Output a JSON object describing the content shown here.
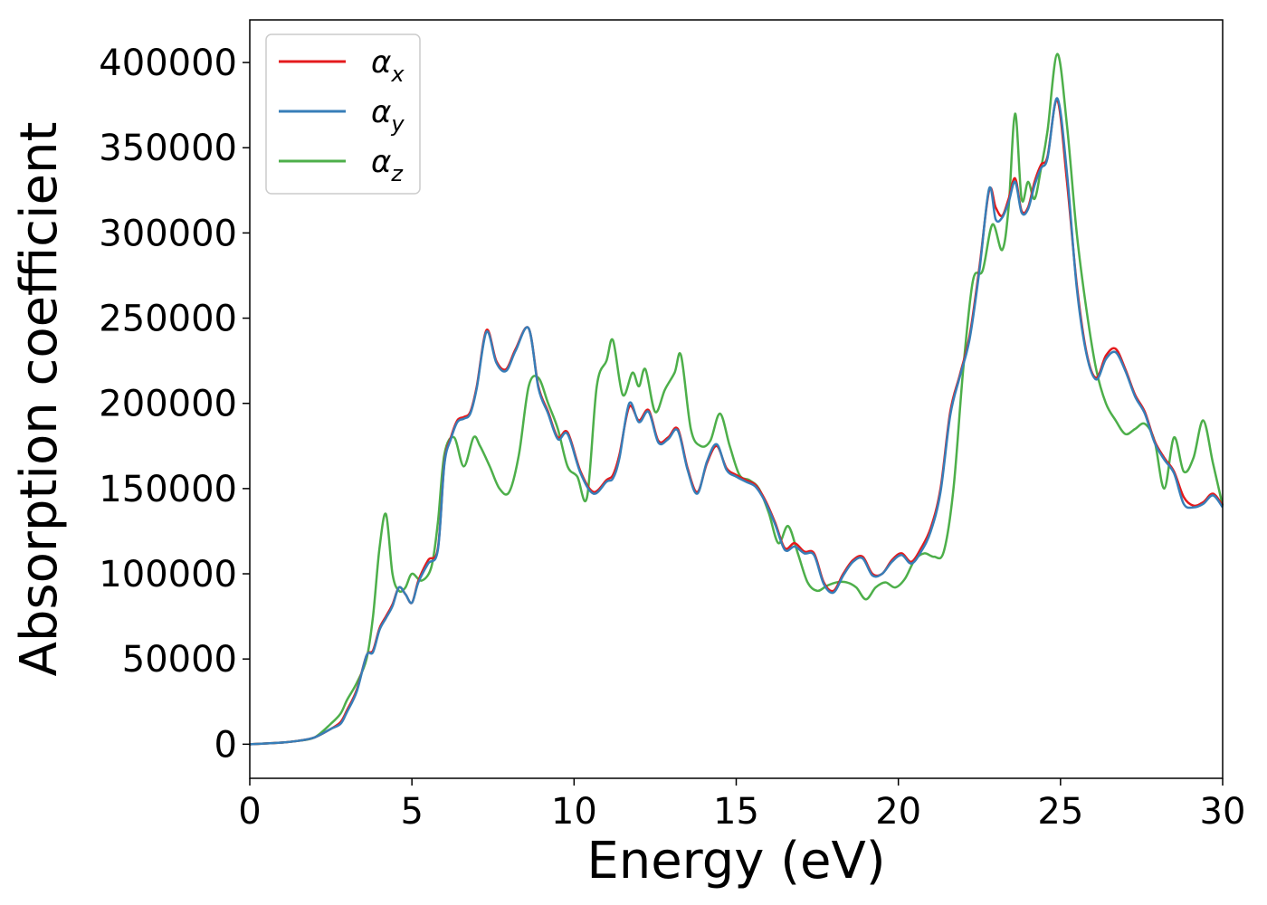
{
  "chart_data": {
    "type": "line",
    "title": "",
    "xlabel": "Energy (eV)",
    "ylabel": "Absorption coefficient",
    "xlim": [
      0,
      30
    ],
    "ylim": [
      -20000,
      425000
    ],
    "xticks": [
      0,
      5,
      10,
      15,
      20,
      25,
      30
    ],
    "yticks": [
      0,
      50000,
      100000,
      150000,
      200000,
      250000,
      300000,
      350000,
      400000
    ],
    "grid": false,
    "legend_position": "top-left",
    "series": [
      {
        "name": "α_x",
        "label_base": "α",
        "label_sub": "x",
        "color": "#e41a1c",
        "x": [
          0,
          1,
          1.5,
          2,
          2.5,
          2.8,
          3,
          3.3,
          3.6,
          3.8,
          4,
          4.2,
          4.4,
          4.6,
          4.8,
          5,
          5.2,
          5.5,
          5.8,
          6,
          6.2,
          6.4,
          6.6,
          6.8,
          7,
          7.3,
          7.6,
          7.9,
          8.2,
          8.6,
          8.9,
          9.2,
          9.5,
          9.8,
          10.2,
          10.6,
          11,
          11.2,
          11.4,
          11.7,
          12,
          12.3,
          12.6,
          12.9,
          13.2,
          13.5,
          13.8,
          14.1,
          14.4,
          14.7,
          15,
          15.3,
          15.6,
          15.9,
          16.2,
          16.5,
          16.8,
          17.1,
          17.4,
          17.7,
          18,
          18.3,
          18.6,
          18.9,
          19.2,
          19.5,
          19.8,
          20.1,
          20.4,
          20.7,
          21,
          21.3,
          21.6,
          21.9,
          22.2,
          22.5,
          22.8,
          23,
          23.2,
          23.4,
          23.6,
          23.8,
          24,
          24.2,
          24.4,
          24.6,
          24.9,
          25.2,
          25.5,
          25.8,
          26.1,
          26.4,
          26.7,
          27,
          27.3,
          27.6,
          27.9,
          28.2,
          28.5,
          28.8,
          29.1,
          29.4,
          29.7,
          30
        ],
        "y": [
          0,
          1000,
          2000,
          4000,
          9000,
          13000,
          20000,
          32000,
          52000,
          55000,
          68000,
          75000,
          82000,
          92000,
          88000,
          83000,
          96000,
          108000,
          115000,
          165000,
          180000,
          190000,
          192000,
          195000,
          210000,
          243000,
          225000,
          220000,
          232000,
          244000,
          210000,
          195000,
          180000,
          183000,
          160000,
          148000,
          155000,
          158000,
          170000,
          198000,
          190000,
          196000,
          178000,
          180000,
          185000,
          162000,
          148000,
          165000,
          175000,
          162000,
          158000,
          155000,
          152000,
          143000,
          130000,
          115000,
          118000,
          113000,
          112000,
          95000,
          90000,
          100000,
          108000,
          110000,
          100000,
          100000,
          108000,
          112000,
          107000,
          115000,
          127000,
          150000,
          195000,
          217000,
          240000,
          280000,
          325000,
          315000,
          310000,
          320000,
          332000,
          313000,
          315000,
          330000,
          340000,
          345000,
          378000,
          330000,
          270000,
          230000,
          215000,
          228000,
          232000,
          220000,
          205000,
          195000,
          178000,
          168000,
          160000,
          145000,
          140000,
          142000,
          147000,
          140000
        ]
      },
      {
        "name": "α_y",
        "label_base": "α",
        "label_sub": "y",
        "color": "#377eb8",
        "x": [
          0,
          1,
          1.5,
          2,
          2.5,
          2.8,
          3,
          3.3,
          3.6,
          3.8,
          4,
          4.2,
          4.4,
          4.6,
          4.8,
          5,
          5.2,
          5.5,
          5.8,
          6,
          6.2,
          6.4,
          6.6,
          6.8,
          7,
          7.3,
          7.6,
          7.9,
          8.2,
          8.6,
          8.9,
          9.2,
          9.5,
          9.8,
          10.2,
          10.6,
          11,
          11.2,
          11.4,
          11.7,
          12,
          12.3,
          12.6,
          12.9,
          13.2,
          13.5,
          13.8,
          14.1,
          14.4,
          14.7,
          15,
          15.3,
          15.6,
          15.9,
          16.2,
          16.5,
          16.8,
          17.1,
          17.4,
          17.7,
          18,
          18.3,
          18.6,
          18.9,
          19.2,
          19.5,
          19.8,
          20.1,
          20.4,
          20.7,
          21,
          21.3,
          21.6,
          21.9,
          22.2,
          22.5,
          22.8,
          23,
          23.2,
          23.4,
          23.6,
          23.8,
          24,
          24.2,
          24.4,
          24.6,
          24.9,
          25.2,
          25.5,
          25.8,
          26.1,
          26.4,
          26.7,
          27,
          27.3,
          27.6,
          27.9,
          28.2,
          28.5,
          28.8,
          29.1,
          29.4,
          29.7,
          30
        ],
        "y": [
          0,
          1000,
          2000,
          4000,
          9000,
          12000,
          19000,
          31000,
          52000,
          54000,
          67000,
          74000,
          81000,
          92000,
          88000,
          83000,
          95000,
          106000,
          114000,
          164000,
          179000,
          189000,
          191000,
          194000,
          209000,
          242000,
          224000,
          219000,
          231000,
          244000,
          209000,
          194000,
          179000,
          182000,
          159000,
          147000,
          154000,
          156000,
          168000,
          200000,
          189000,
          195000,
          177000,
          179000,
          184000,
          161000,
          147000,
          166000,
          176000,
          161000,
          157000,
          154000,
          151000,
          142000,
          129000,
          114000,
          116000,
          112000,
          111000,
          94000,
          89000,
          99000,
          107000,
          109000,
          99000,
          100000,
          107000,
          111000,
          106000,
          113000,
          125000,
          148000,
          193000,
          216000,
          238000,
          278000,
          326000,
          308000,
          309000,
          318000,
          330000,
          312000,
          314000,
          328000,
          338000,
          344000,
          379000,
          335000,
          268000,
          229000,
          214000,
          226000,
          230000,
          219000,
          204000,
          194000,
          177000,
          167000,
          159000,
          141000,
          139000,
          141000,
          146000,
          139000
        ]
      },
      {
        "name": "α_z",
        "label_base": "α",
        "label_sub": "z",
        "color": "#4daf4a",
        "x": [
          0,
          1,
          1.5,
          2,
          2.5,
          2.8,
          3,
          3.3,
          3.6,
          3.8,
          4,
          4.2,
          4.4,
          4.6,
          4.8,
          5,
          5.3,
          5.6,
          5.8,
          6,
          6.3,
          6.6,
          6.9,
          7.1,
          7.4,
          7.7,
          8,
          8.3,
          8.6,
          8.9,
          9.2,
          9.5,
          9.8,
          10.1,
          10.4,
          10.7,
          11,
          11.2,
          11.5,
          11.8,
          12,
          12.2,
          12.5,
          12.8,
          13.1,
          13.3,
          13.6,
          13.9,
          14.2,
          14.5,
          14.8,
          15.1,
          15.4,
          15.7,
          16,
          16.3,
          16.6,
          16.9,
          17.2,
          17.5,
          17.8,
          18.1,
          18.4,
          18.7,
          19,
          19.3,
          19.6,
          19.9,
          20.2,
          20.5,
          20.8,
          21.1,
          21.4,
          21.7,
          22,
          22.3,
          22.6,
          22.9,
          23.2,
          23.4,
          23.6,
          23.8,
          24,
          24.2,
          24.4,
          24.6,
          24.9,
          25.2,
          25.5,
          25.8,
          26.1,
          26.4,
          26.7,
          27,
          27.3,
          27.6,
          27.9,
          28.2,
          28.5,
          28.8,
          29.1,
          29.4,
          29.7,
          30
        ],
        "y": [
          0,
          1000,
          2000,
          4000,
          12000,
          18000,
          26000,
          36000,
          50000,
          75000,
          115000,
          135000,
          100000,
          90000,
          92000,
          100000,
          96000,
          104000,
          130000,
          170000,
          180000,
          163000,
          180000,
          175000,
          163000,
          150000,
          148000,
          170000,
          210000,
          215000,
          200000,
          185000,
          163000,
          157000,
          145000,
          210000,
          225000,
          237000,
          205000,
          218000,
          210000,
          220000,
          195000,
          208000,
          218000,
          228000,
          185000,
          175000,
          178000,
          194000,
          175000,
          158000,
          155000,
          150000,
          136000,
          118000,
          128000,
          112000,
          95000,
          90000,
          93000,
          95000,
          95000,
          92000,
          85000,
          92000,
          95000,
          92000,
          97000,
          108000,
          112000,
          110000,
          113000,
          150000,
          220000,
          272000,
          278000,
          305000,
          290000,
          315000,
          370000,
          320000,
          330000,
          320000,
          338000,
          360000,
          405000,
          363000,
          300000,
          255000,
          220000,
          200000,
          190000,
          182000,
          185000,
          188000,
          178000,
          150000,
          180000,
          160000,
          168000,
          190000,
          165000,
          140000
        ]
      }
    ]
  }
}
